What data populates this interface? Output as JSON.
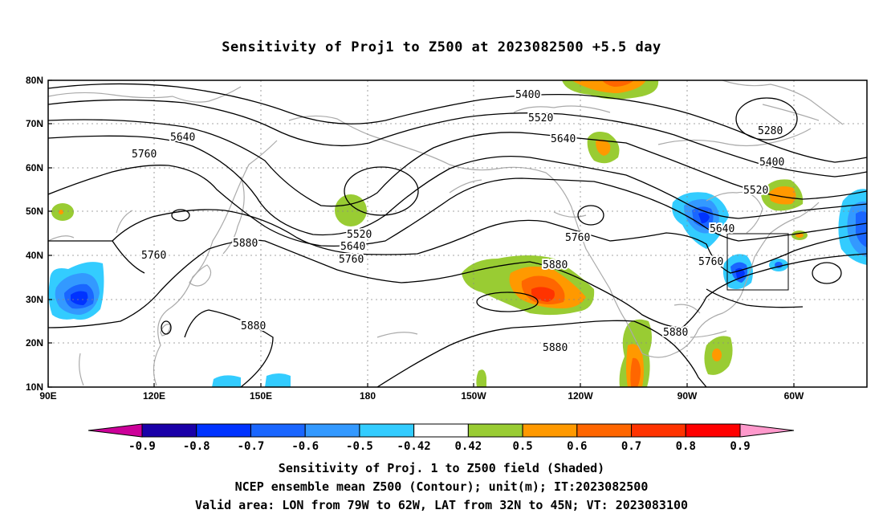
{
  "title": "Sensitivity of Proj1 to Z500 at 2023082500 +5.5 day",
  "lat_labels": [
    "80N",
    "70N",
    "60N",
    "50N",
    "40N",
    "30N",
    "20N",
    "10N"
  ],
  "lon_labels": [
    "90E",
    "120E",
    "150E",
    "180",
    "150W",
    "120W",
    "90W",
    "60W"
  ],
  "contour_labels": [
    "5400",
    "5520",
    "5640",
    "5760",
    "5280",
    "5400",
    "5520",
    "5640",
    "5760",
    "5880",
    "5640",
    "5760",
    "5520",
    "5640",
    "5760",
    "5760",
    "5880",
    "5880",
    "5880",
    "5880"
  ],
  "colorbar": {
    "labels": [
      "-0.9",
      "-0.8",
      "-0.7",
      "-0.6",
      "-0.5",
      "-0.42",
      "0.42",
      "0.5",
      "0.6",
      "0.7",
      "0.8",
      "0.9"
    ],
    "colors": [
      "#1a00a8",
      "#0033ff",
      "#1a66ff",
      "#3399ff",
      "#33ccff",
      "#ffffff",
      "#99cc33",
      "#ff9900",
      "#ff6600",
      "#ff3300",
      "#ff0000"
    ],
    "left_tip_color": "#cc0099",
    "right_tip_color": "#ff99cc"
  },
  "captions": {
    "line1": "Sensitivity of Proj. 1 to Z500 field (Shaded)",
    "line2": "NCEP ensemble mean Z500 (Contour); unit(m); IT:2023082500",
    "line3": "Valid area: LON from 79W to 62W, LAT from 32N to 45N; VT: 2023083100"
  }
}
